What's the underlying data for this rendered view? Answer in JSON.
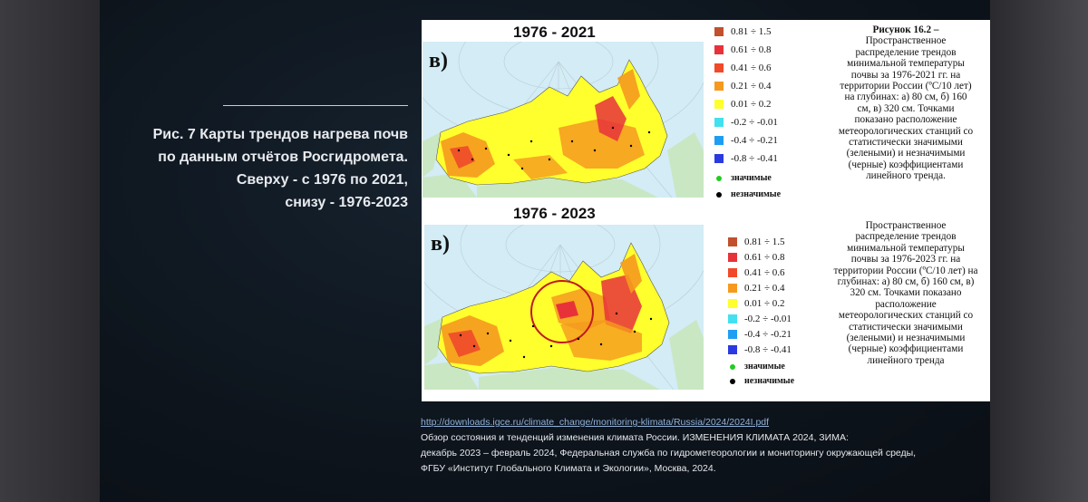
{
  "caption": {
    "line1": "Рис. 7 Карты трендов нагрева почв",
    "line2": "по данным отчётов Росгидромета.",
    "line3": "Сверху  - с 1976 по 2021,",
    "line4": "снизу - 1976-2023"
  },
  "figure": {
    "top": {
      "title": "1976 - 2021",
      "panel_letter": "в)",
      "legend": [
        {
          "label": "0.81 ÷ 1.5",
          "color": "#c1502d"
        },
        {
          "label": "0.61 ÷ 0.8",
          "color": "#e8323a"
        },
        {
          "label": "0.41 ÷ 0.6",
          "color": "#f04a2a"
        },
        {
          "label": "0.21 ÷ 0.4",
          "color": "#f59a1e"
        },
        {
          "label": "0.01 ÷ 0.2",
          "color": "#ffff2e"
        },
        {
          "label": "-0.2 ÷ -0.01",
          "color": "#43e0f0"
        },
        {
          "label": "-0.4 ÷ -0.21",
          "color": "#1e9ef2"
        },
        {
          "label": "-0.8 ÷ -0.41",
          "color": "#2a3ae0"
        }
      ],
      "significant": "значимые",
      "insignificant": "незначимые"
    },
    "bottom": {
      "title": "1976 - 2023",
      "panel_letter": "в)",
      "legend": [
        {
          "label": "0.81 ÷ 1.5",
          "color": "#c1502d"
        },
        {
          "label": "0.61 ÷ 0.8",
          "color": "#e8323a"
        },
        {
          "label": "0.41 ÷ 0.6",
          "color": "#f04a2a"
        },
        {
          "label": "0.21 ÷ 0.4",
          "color": "#f59a1e"
        },
        {
          "label": "0.01 ÷ 0.2",
          "color": "#ffff2e"
        },
        {
          "label": "-0.2 ÷ -0.01",
          "color": "#43e0f0"
        },
        {
          "label": "-0.4 ÷ -0.21",
          "color": "#1e9ef2"
        },
        {
          "label": "-0.8 ÷ -0.41",
          "color": "#2a3ae0"
        }
      ],
      "significant": "значимые",
      "insignificant": "незначимые"
    },
    "desc_top": [
      "Рисунок 16.2 –",
      "Пространственное",
      "распределение трендов",
      "минимальной температуры",
      "почвы за 1976-2021 гг. на",
      "территории России (ºС/10 лет)",
      "на глубинах: а) 80 см, б) 160",
      "см, в) 320 см. Точками",
      "показано расположение",
      "метеорологических станций со",
      "статистически значимыми",
      "(зелеными) и незначимыми",
      "(черные) коэффициентами",
      "линейного тренда."
    ],
    "desc_bottom": [
      "Пространственное",
      "распределение трендов",
      "минимальной температуры",
      "почвы за 1976-2023 гг. на",
      "территории России (ºС/10 лет) на",
      "глубинах: а) 80 см, б) 160 см, в)",
      "320 см. Точками показано",
      "расположение",
      "метеорологических станций со",
      "статистически значимыми",
      "(зелеными) и незначимыми",
      "(черные) коэффициентами",
      "линейного тренда"
    ]
  },
  "source": {
    "link": "http://downloads.igce.ru/climate_change/monitoring-klimata/Russia/2024/2024I.pdf",
    "line1": "Обзор состояния и тенденций изменения климата России. ИЗМЕНЕНИЯ КЛИМАТА 2024, ЗИМА:",
    "line2": "декабрь 2023 – февраль 2024, Федеральная служба по гидрометеорологии и мониторингу окружающей среды,",
    "line3": "ФГБУ «Институт Глобального Климата и Экологии», Москва, 2024."
  },
  "colors": {
    "sea": "#d3ecf5",
    "land_outside": "#c9e7c3",
    "warm_yellow": "#ffff2e",
    "orange": "#f59a1e",
    "red": "#e8323a",
    "significant_dot": "#22cc22",
    "insignificant_dot": "#000000"
  }
}
